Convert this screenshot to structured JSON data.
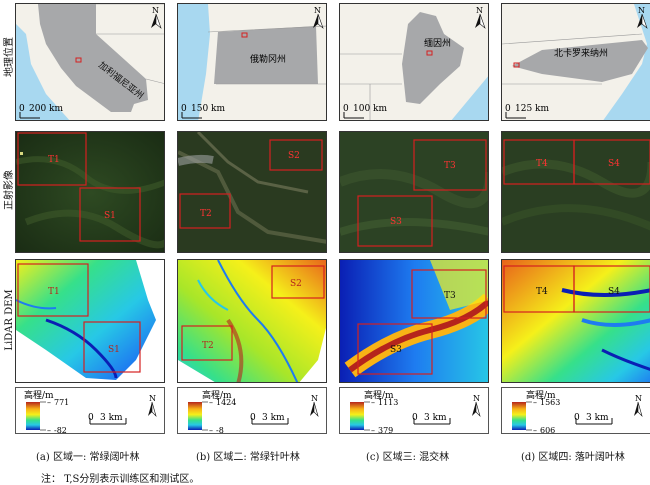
{
  "row_labels": [
    "地理位置",
    "正射影像",
    "LiDAR DEM"
  ],
  "regions": [
    {
      "state_label": "加利福尼亚州",
      "map_scale_label": "0 200 km",
      "map_scale_zero": "0",
      "map_scale_text": "200 km",
      "boxes": [
        {
          "label": "T1"
        },
        {
          "label": "S1"
        }
      ],
      "legend_title": "高程/m",
      "elev_max": "771",
      "elev_min": "-82",
      "dem_scale_zero": "0",
      "dem_scale_text": "3 km",
      "caption": "(a) 区域一: 常绿阔叶林"
    },
    {
      "state_label": "俄勒冈州",
      "map_scale_label": "0 150 km",
      "map_scale_zero": "0",
      "map_scale_text": "150 km",
      "boxes": [
        {
          "label": "S2"
        },
        {
          "label": "T2"
        }
      ],
      "legend_title": "高程/m",
      "elev_max": "1424",
      "elev_min": "-8",
      "dem_scale_zero": "0",
      "dem_scale_text": "3 km",
      "caption": "(b) 区域二: 常绿针叶林"
    },
    {
      "state_label": "缅因州",
      "map_scale_label": "0 100 km",
      "map_scale_zero": "0",
      "map_scale_text": "100 km",
      "boxes": [
        {
          "label": "T3"
        },
        {
          "label": "S3"
        }
      ],
      "legend_title": "高程/m",
      "elev_max": "1113",
      "elev_min": "379",
      "dem_scale_zero": "0",
      "dem_scale_text": "3 km",
      "caption": "(c) 区域三: 混交林"
    },
    {
      "state_label": "北卡罗来纳州",
      "map_scale_label": "0 125 km",
      "map_scale_zero": "0",
      "map_scale_text": "125 km",
      "boxes": [
        {
          "label": "T4"
        },
        {
          "label": "S4"
        }
      ],
      "legend_title": "高程/m",
      "elev_max": "1563",
      "elev_min": "606",
      "dem_scale_zero": "0",
      "dem_scale_text": "3 km",
      "caption": "(d) 区域四: 落叶阔叶林"
    }
  ],
  "north_label": "N",
  "note": "注： T,S分别表示训练区和测试区。",
  "colors": {
    "map_land": "#f3f1ea",
    "map_state": "#a7a8aa",
    "map_water": "#a8d8f0",
    "box_red": "#d42020",
    "ramp": [
      "#0a1fb4",
      "#1e7cf0",
      "#27c8e6",
      "#36e08a",
      "#a8e629",
      "#f5f01a",
      "#f8b316",
      "#e8631a",
      "#b5251c"
    ]
  }
}
